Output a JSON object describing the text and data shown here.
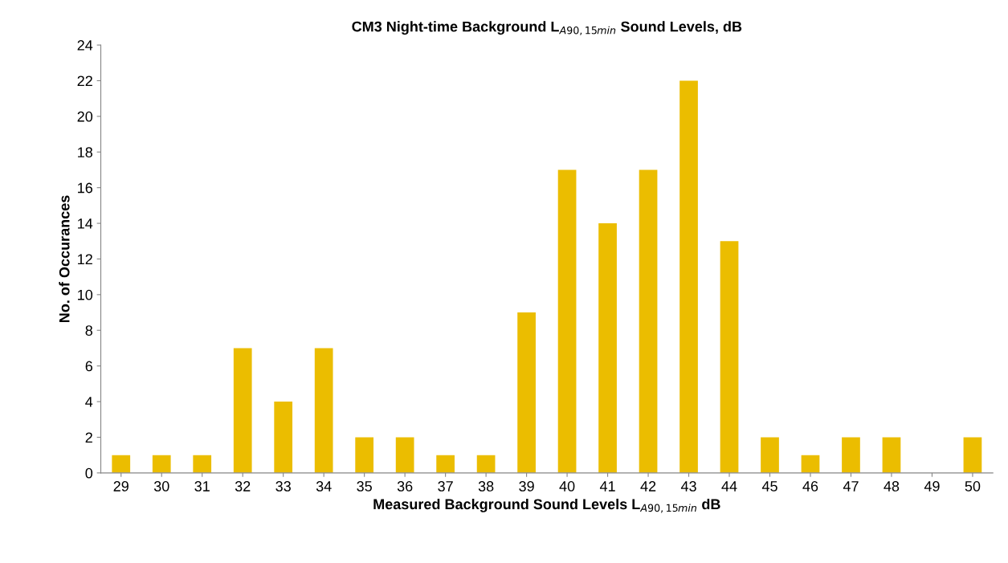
{
  "chart_data": {
    "type": "bar",
    "title": "CM3 Night-time Background L$_{A90,15min}$ Sound Levels, dB",
    "xlabel": "Measured Background Sound Levels L$_{A90,15min}$ dB",
    "ylabel": "No. of Occurances",
    "categories": [
      "29",
      "30",
      "31",
      "32",
      "33",
      "34",
      "35",
      "36",
      "37",
      "38",
      "39",
      "40",
      "41",
      "42",
      "43",
      "44",
      "45",
      "46",
      "47",
      "48",
      "49",
      "50"
    ],
    "values": [
      1,
      1,
      1,
      7,
      4,
      7,
      2,
      2,
      1,
      1,
      9,
      17,
      14,
      17,
      22,
      13,
      2,
      1,
      2,
      2,
      0,
      2
    ],
    "color": "#ebbd00",
    "ylim": [
      0,
      24
    ],
    "yticks": [
      0,
      2,
      4,
      6,
      8,
      10,
      12,
      14,
      16,
      18,
      20,
      22,
      24
    ],
    "grid": false,
    "legend": false
  }
}
